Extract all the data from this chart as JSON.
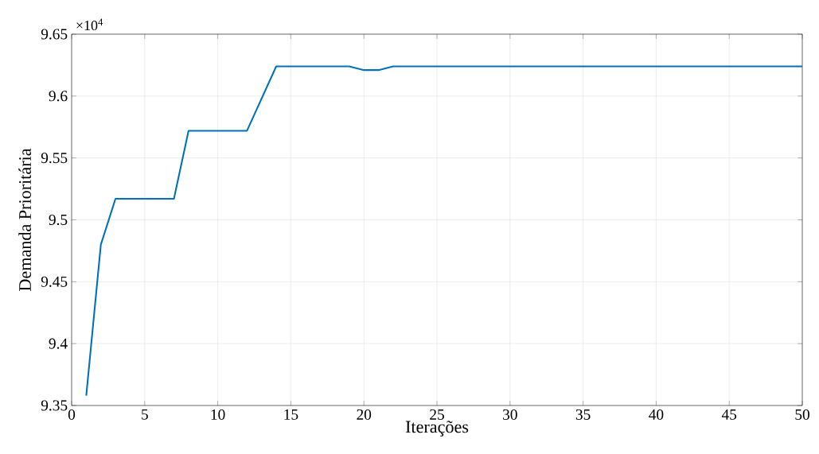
{
  "chart_data": {
    "type": "line",
    "xlabel": "Iterações",
    "ylabel": "Demanda Prioritária",
    "annotations": [
      "×10$^{4}$"
    ],
    "x": [
      1,
      2,
      3,
      7,
      8,
      12,
      14,
      19,
      20,
      21,
      22,
      50
    ],
    "series": [
      {
        "color": "#0072bd",
        "values": [
          9.358,
          9.48,
          9.517,
          9.517,
          9.572,
          9.572,
          9.624,
          9.624,
          9.621,
          9.621,
          9.624,
          9.624
        ]
      }
    ],
    "xlim": [
      0,
      50
    ],
    "xticks": [
      0,
      5,
      10,
      15,
      20,
      25,
      30,
      35,
      40,
      45,
      50
    ],
    "ylim": [
      9.35,
      9.65
    ],
    "yticks": [
      9.35,
      9.4,
      9.45,
      9.5,
      9.55,
      9.6,
      9.65
    ],
    "grid": true,
    "marker": "none",
    "line_style": "solid"
  }
}
